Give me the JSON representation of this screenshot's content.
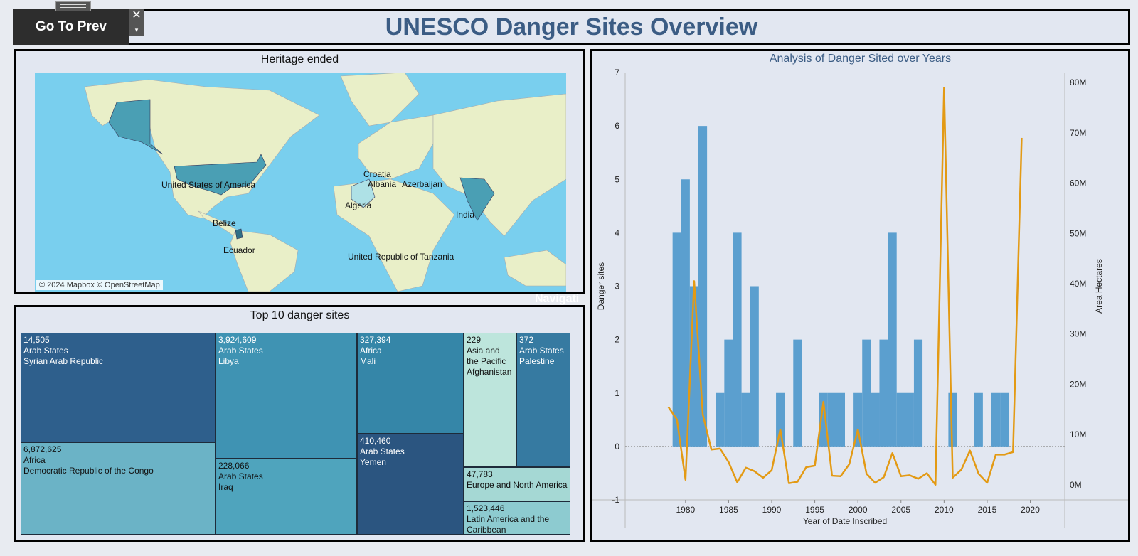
{
  "header": {
    "title": "UNESCO Danger Sites Overview",
    "go_prev_label": "Go To Prev",
    "close_glyph": "✕",
    "menu_glyph": "▾"
  },
  "map": {
    "title": "Heritage ended",
    "attribution": "© 2024 Mapbox © OpenStreetMap",
    "labels": [
      "United States of America",
      "Belize",
      "Ecuador",
      "Croatia",
      "Albania",
      "Azerbaijan",
      "Algeria",
      "India",
      "United Republic of Tanzania"
    ],
    "colors": {
      "ocean": "#79cfee",
      "land": "#e9efc8",
      "highlight": "#4a9fb4"
    }
  },
  "ghost_text": "Navigati",
  "treemap": {
    "title": "Top 10 danger sites",
    "cells": [
      {
        "value": "14,505",
        "region": "Arab States",
        "country": "Syrian Arab Republic"
      },
      {
        "value": "6,872,625",
        "region": "Africa",
        "country": "Democratic Republic of the Congo"
      },
      {
        "value": "3,924,609",
        "region": "Arab States",
        "country": "Libya"
      },
      {
        "value": "228,066",
        "region": "Arab States",
        "country": "Iraq"
      },
      {
        "value": "327,394",
        "region": "Africa",
        "country": "Mali"
      },
      {
        "value": "410,460",
        "region": "Arab States",
        "country": "Yemen"
      },
      {
        "value": "229",
        "region": "Asia and the Pacific",
        "country": "Afghanistan"
      },
      {
        "value": "372",
        "region": "Arab States",
        "country": "Palestine"
      },
      {
        "value": "47,783",
        "region": "Europe and North America",
        "country": ""
      },
      {
        "value": "1,523,446",
        "region": "Latin America and the Caribbean",
        "country": ""
      }
    ]
  },
  "chart_data": {
    "type": "bar",
    "title": "Analysis of Danger Sited over Years",
    "xlabel": "Year of Date Inscribed",
    "ylabel": "Danger sites",
    "y2label": "Area Hectares",
    "xlim": [
      1973,
      2024
    ],
    "ylim": [
      -1,
      7
    ],
    "y2lim": [
      -3,
      82
    ],
    "x_ticks": [
      1980,
      1985,
      1990,
      1995,
      2000,
      2005,
      2010,
      2015,
      2020
    ],
    "y_ticks": [
      -1,
      0,
      1,
      2,
      3,
      4,
      5,
      6,
      7
    ],
    "y2_ticks": [
      "0M",
      "10M",
      "20M",
      "30M",
      "40M",
      "50M",
      "60M",
      "70M",
      "80M"
    ],
    "y2_tick_values": [
      0,
      10,
      20,
      30,
      40,
      50,
      60,
      70,
      80
    ],
    "bar_color": "#5b9fcf",
    "line_color": "#e39a14",
    "bars": {
      "years": [
        1979,
        1980,
        1981,
        1982,
        1984,
        1985,
        1986,
        1987,
        1988,
        1991,
        1993,
        1996,
        1997,
        1998,
        2000,
        2001,
        2002,
        2003,
        2004,
        2005,
        2006,
        2007,
        2011,
        2014,
        2016,
        2017
      ],
      "values": [
        4,
        5,
        3,
        6,
        1,
        2,
        4,
        1,
        3,
        1,
        2,
        1,
        1,
        1,
        1,
        2,
        1,
        2,
        4,
        1,
        1,
        2,
        1,
        1,
        1,
        1
      ]
    },
    "series": [
      {
        "years": [
          1978,
          1979,
          1980,
          1981,
          1982,
          1983,
          1984,
          1985,
          1986,
          1987,
          1988,
          1989,
          1990,
          1991,
          1992,
          1993,
          1994,
          1995,
          1996,
          1997,
          1998,
          1999,
          2000,
          2001,
          2002,
          2003,
          2004,
          2005,
          2006,
          2007,
          2008,
          2009,
          2010,
          2011,
          2012,
          2013,
          2014,
          2015,
          2016,
          2017,
          2018,
          2019
        ],
        "values": [
          15.5,
          13,
          1,
          40.5,
          14,
          7,
          7.2,
          4.5,
          0.5,
          3.4,
          2.7,
          1.4,
          2.9,
          11,
          0.3,
          0.6,
          3.5,
          3.8,
          16.5,
          1.8,
          1.7,
          4.1,
          11,
          2.2,
          0.4,
          1.5,
          6.3,
          1.7,
          1.9,
          1.2,
          2.3,
          0,
          79,
          1.4,
          3,
          6.8,
          2.2,
          0.4,
          6,
          6,
          6.5,
          69
        ]
      }
    ]
  }
}
